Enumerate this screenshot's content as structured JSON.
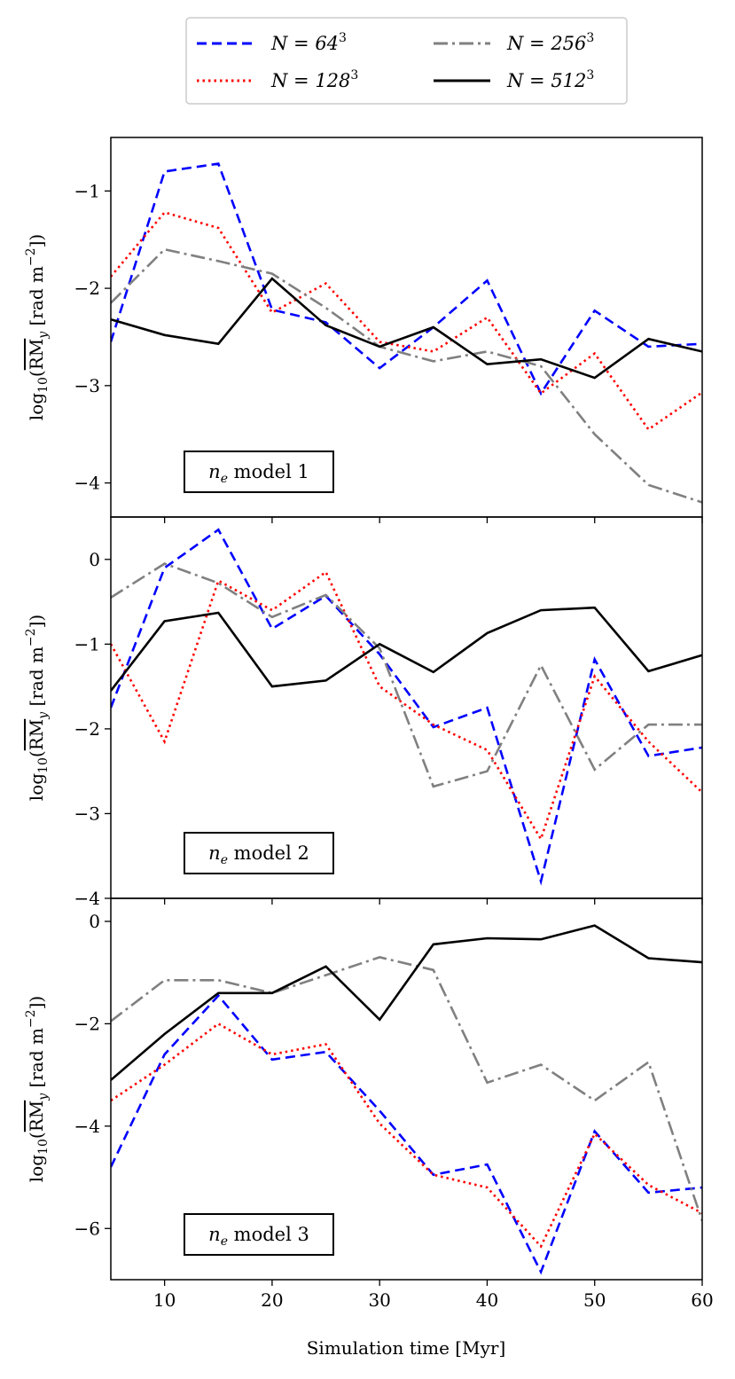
{
  "chart_data": [
    {
      "type": "line",
      "annotation": "n_e model 1",
      "annotation_var": "n",
      "annotation_sub": "e",
      "annotation_rest": " model 1",
      "x": [
        5,
        10,
        15,
        20,
        25,
        30,
        35,
        40,
        45,
        50,
        55,
        60
      ],
      "xlim": [
        5,
        60
      ],
      "ylim": [
        -4.35,
        -0.45
      ],
      "yticks": [
        -4,
        -3,
        -2,
        -1
      ],
      "ytick_labels": [
        "−4",
        "−3",
        "−2",
        "−1"
      ],
      "series": [
        {
          "name": "N = 64³",
          "key": "n64",
          "values": [
            -2.55,
            -0.8,
            -0.72,
            -2.22,
            -2.35,
            -2.82,
            -2.4,
            -1.92,
            -3.08,
            -2.23,
            -2.6,
            -2.57
          ]
        },
        {
          "name": "N = 128³",
          "key": "n128",
          "values": [
            -1.88,
            -1.22,
            -1.38,
            -2.25,
            -1.95,
            -2.55,
            -2.65,
            -2.3,
            -3.08,
            -2.67,
            -3.45,
            -3.07
          ]
        },
        {
          "name": "N = 256³",
          "key": "n256",
          "values": [
            -2.15,
            -1.6,
            -1.72,
            -1.85,
            -2.2,
            -2.6,
            -2.75,
            -2.65,
            -2.8,
            -3.5,
            -4.02,
            -4.2
          ]
        },
        {
          "name": "N = 512³",
          "key": "n512",
          "values": [
            -2.32,
            -2.48,
            -2.57,
            -1.9,
            -2.38,
            -2.6,
            -2.4,
            -2.78,
            -2.73,
            -2.92,
            -2.52,
            -2.65
          ]
        }
      ]
    },
    {
      "type": "line",
      "annotation": "n_e model 2",
      "annotation_var": "n",
      "annotation_sub": "e",
      "annotation_rest": " model 2",
      "x": [
        5,
        10,
        15,
        20,
        25,
        30,
        35,
        40,
        45,
        50,
        55,
        60
      ],
      "xlim": [
        5,
        60
      ],
      "ylim": [
        -4,
        0.5
      ],
      "yticks": [
        -4,
        -3,
        -2,
        -1,
        0
      ],
      "ytick_labels": [
        "−4",
        "−3",
        "−2",
        "−1",
        "0"
      ],
      "series": [
        {
          "name": "N = 64³",
          "key": "n64",
          "values": [
            -1.75,
            -0.1,
            0.35,
            -0.82,
            -0.43,
            -1.12,
            -1.98,
            -1.75,
            -3.8,
            -1.18,
            -2.32,
            -2.22
          ]
        },
        {
          "name": "N = 128³",
          "key": "n128",
          "values": [
            -1.0,
            -2.15,
            -0.25,
            -0.6,
            -0.15,
            -1.5,
            -1.95,
            -2.25,
            -3.3,
            -1.38,
            -2.15,
            -2.75
          ]
        },
        {
          "name": "N = 256³",
          "key": "n256",
          "values": [
            -0.45,
            -0.05,
            -0.28,
            -0.68,
            -0.42,
            -1.05,
            -2.68,
            -2.5,
            -1.25,
            -2.48,
            -1.95,
            -1.95
          ]
        },
        {
          "name": "N = 512³",
          "key": "n512",
          "values": [
            -1.55,
            -0.73,
            -0.63,
            -1.5,
            -1.43,
            -1.0,
            -1.33,
            -0.87,
            -0.6,
            -0.57,
            -1.32,
            -1.13
          ]
        }
      ]
    },
    {
      "type": "line",
      "annotation": "n_e model 3",
      "annotation_var": "n",
      "annotation_sub": "e",
      "annotation_rest": " model 3",
      "xlabel": "Simulation time [Myr]",
      "x": [
        5,
        10,
        15,
        20,
        25,
        30,
        35,
        40,
        45,
        50,
        55,
        60
      ],
      "xlim": [
        5,
        60
      ],
      "xticks": [
        10,
        20,
        30,
        40,
        50,
        60
      ],
      "xtick_labels": [
        "10",
        "20",
        "30",
        "40",
        "50",
        "60"
      ],
      "ylim": [
        -7,
        0.45
      ],
      "yticks": [
        -6,
        -4,
        -2,
        0
      ],
      "ytick_labels": [
        "−6",
        "−4",
        "−2",
        "0"
      ],
      "series": [
        {
          "name": "N = 64³",
          "key": "n64",
          "values": [
            -4.8,
            -2.6,
            -1.45,
            -2.7,
            -2.55,
            -3.7,
            -4.95,
            -4.75,
            -6.85,
            -4.1,
            -5.3,
            -5.2
          ]
        },
        {
          "name": "N = 128³",
          "key": "n128",
          "values": [
            -3.5,
            -2.8,
            -2.0,
            -2.6,
            -2.4,
            -3.95,
            -4.95,
            -5.2,
            -6.35,
            -4.15,
            -5.15,
            -5.7
          ]
        },
        {
          "name": "N = 256³",
          "key": "n256",
          "values": [
            -1.95,
            -1.15,
            -1.15,
            -1.4,
            -1.05,
            -0.7,
            -0.95,
            -3.15,
            -2.8,
            -3.5,
            -2.75,
            -5.85
          ]
        },
        {
          "name": "N = 512³",
          "key": "n512",
          "values": [
            -3.1,
            -2.2,
            -1.4,
            -1.4,
            -0.88,
            -1.92,
            -0.45,
            -0.33,
            -0.35,
            -0.08,
            -0.72,
            -0.8
          ]
        }
      ]
    }
  ],
  "legend": {
    "items": [
      {
        "key": "n64",
        "prefix": "N = 64",
        "exp": "3"
      },
      {
        "key": "n256",
        "prefix": "N = 256",
        "exp": "3"
      },
      {
        "key": "n128",
        "prefix": "N = 128",
        "exp": "3"
      },
      {
        "key": "n512",
        "prefix": "N = 512",
        "exp": "3"
      }
    ]
  },
  "ylabel": {
    "main": "log",
    "sub": "10",
    "open": "(",
    "rm": "RM",
    "rm_sub": "y",
    "unit": " [rad m",
    "unit_exp": "−2",
    "close": "])"
  },
  "styles": {
    "n64": {
      "color": "#0000ff",
      "dash": "dashed"
    },
    "n128": {
      "color": "#ff0000",
      "dash": "dotted"
    },
    "n256": {
      "color": "#808080",
      "dash": "dashdot"
    },
    "n512": {
      "color": "#000000",
      "dash": "solid"
    }
  }
}
